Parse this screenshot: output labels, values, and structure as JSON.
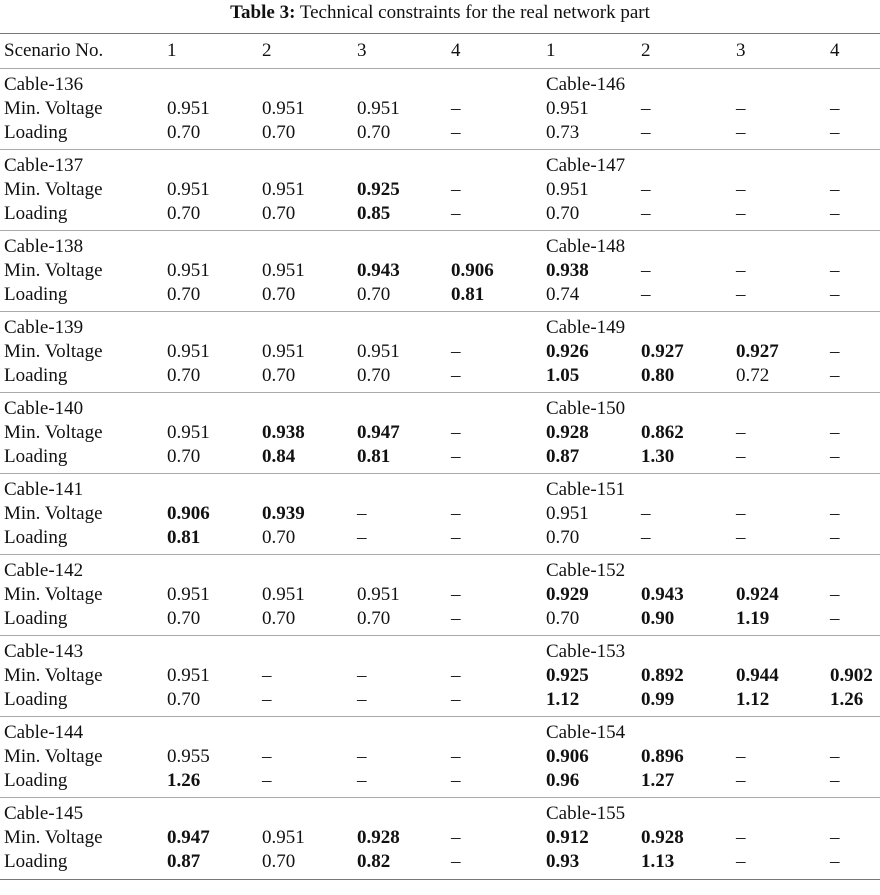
{
  "caption": {
    "label": "Table 3:",
    "text": "Technical constraints for the real network part"
  },
  "header": [
    "Scenario No.",
    "1",
    "2",
    "3",
    "4",
    "1",
    "2",
    "3",
    "4"
  ],
  "row_labels": {
    "voltage": "Min. Voltage",
    "loading": "Loading"
  },
  "groups": [
    {
      "left": "Cable-136",
      "right": "Cable-146",
      "voltage": [
        {
          "v": "0.951",
          "b": false
        },
        {
          "v": "0.951",
          "b": false
        },
        {
          "v": "0.951",
          "b": false
        },
        {
          "v": "–",
          "b": false
        },
        {
          "v": "0.951",
          "b": false
        },
        {
          "v": "–",
          "b": false
        },
        {
          "v": "–",
          "b": false
        },
        {
          "v": "–",
          "b": false
        }
      ],
      "loading": [
        {
          "v": "0.70",
          "b": false
        },
        {
          "v": "0.70",
          "b": false
        },
        {
          "v": "0.70",
          "b": false
        },
        {
          "v": "–",
          "b": false
        },
        {
          "v": "0.73",
          "b": false
        },
        {
          "v": "–",
          "b": false
        },
        {
          "v": "–",
          "b": false
        },
        {
          "v": "–",
          "b": false
        }
      ]
    },
    {
      "left": "Cable-137",
      "right": "Cable-147",
      "voltage": [
        {
          "v": "0.951",
          "b": false
        },
        {
          "v": "0.951",
          "b": false
        },
        {
          "v": "0.925",
          "b": true
        },
        {
          "v": "–",
          "b": false
        },
        {
          "v": "0.951",
          "b": false
        },
        {
          "v": "–",
          "b": false
        },
        {
          "v": "–",
          "b": false
        },
        {
          "v": "–",
          "b": false
        }
      ],
      "loading": [
        {
          "v": "0.70",
          "b": false
        },
        {
          "v": "0.70",
          "b": false
        },
        {
          "v": "0.85",
          "b": true
        },
        {
          "v": "–",
          "b": false
        },
        {
          "v": "0.70",
          "b": false
        },
        {
          "v": "–",
          "b": false
        },
        {
          "v": "–",
          "b": false
        },
        {
          "v": "–",
          "b": false
        }
      ]
    },
    {
      "left": "Cable-138",
      "right": "Cable-148",
      "voltage": [
        {
          "v": "0.951",
          "b": false
        },
        {
          "v": "0.951",
          "b": false
        },
        {
          "v": "0.943",
          "b": true
        },
        {
          "v": "0.906",
          "b": true
        },
        {
          "v": "0.938",
          "b": true
        },
        {
          "v": "–",
          "b": false
        },
        {
          "v": "–",
          "b": false
        },
        {
          "v": "–",
          "b": false
        }
      ],
      "loading": [
        {
          "v": "0.70",
          "b": false
        },
        {
          "v": "0.70",
          "b": false
        },
        {
          "v": "0.70",
          "b": false
        },
        {
          "v": "0.81",
          "b": true
        },
        {
          "v": "0.74",
          "b": false
        },
        {
          "v": "–",
          "b": false
        },
        {
          "v": "–",
          "b": false
        },
        {
          "v": "–",
          "b": false
        }
      ]
    },
    {
      "left": "Cable-139",
      "right": "Cable-149",
      "voltage": [
        {
          "v": "0.951",
          "b": false
        },
        {
          "v": "0.951",
          "b": false
        },
        {
          "v": "0.951",
          "b": false
        },
        {
          "v": "–",
          "b": false
        },
        {
          "v": "0.926",
          "b": true
        },
        {
          "v": "0.927",
          "b": true
        },
        {
          "v": "0.927",
          "b": true
        },
        {
          "v": "–",
          "b": false
        }
      ],
      "loading": [
        {
          "v": "0.70",
          "b": false
        },
        {
          "v": "0.70",
          "b": false
        },
        {
          "v": "0.70",
          "b": false
        },
        {
          "v": "–",
          "b": false
        },
        {
          "v": "1.05",
          "b": true
        },
        {
          "v": "0.80",
          "b": true
        },
        {
          "v": "0.72",
          "b": false
        },
        {
          "v": "–",
          "b": false
        }
      ]
    },
    {
      "left": "Cable-140",
      "right": "Cable-150",
      "voltage": [
        {
          "v": "0.951",
          "b": false
        },
        {
          "v": "0.938",
          "b": true
        },
        {
          "v": "0.947",
          "b": true
        },
        {
          "v": "–",
          "b": false
        },
        {
          "v": "0.928",
          "b": true
        },
        {
          "v": "0.862",
          "b": true
        },
        {
          "v": "–",
          "b": false
        },
        {
          "v": "–",
          "b": false
        }
      ],
      "loading": [
        {
          "v": "0.70",
          "b": false
        },
        {
          "v": "0.84",
          "b": true
        },
        {
          "v": "0.81",
          "b": true
        },
        {
          "v": "–",
          "b": false
        },
        {
          "v": "0.87",
          "b": true
        },
        {
          "v": "1.30",
          "b": true
        },
        {
          "v": "–",
          "b": false
        },
        {
          "v": "–",
          "b": false
        }
      ]
    },
    {
      "left": "Cable-141",
      "right": "Cable-151",
      "voltage": [
        {
          "v": "0.906",
          "b": true
        },
        {
          "v": "0.939",
          "b": true
        },
        {
          "v": "–",
          "b": false
        },
        {
          "v": "–",
          "b": false
        },
        {
          "v": "0.951",
          "b": false
        },
        {
          "v": "–",
          "b": false
        },
        {
          "v": "–",
          "b": false
        },
        {
          "v": "–",
          "b": false
        }
      ],
      "loading": [
        {
          "v": "0.81",
          "b": true
        },
        {
          "v": "0.70",
          "b": false
        },
        {
          "v": "–",
          "b": false
        },
        {
          "v": "–",
          "b": false
        },
        {
          "v": "0.70",
          "b": false
        },
        {
          "v": "–",
          "b": false
        },
        {
          "v": "–",
          "b": false
        },
        {
          "v": "–",
          "b": false
        }
      ]
    },
    {
      "left": "Cable-142",
      "right": "Cable-152",
      "voltage": [
        {
          "v": "0.951",
          "b": false
        },
        {
          "v": "0.951",
          "b": false
        },
        {
          "v": "0.951",
          "b": false
        },
        {
          "v": "–",
          "b": false
        },
        {
          "v": "0.929",
          "b": true
        },
        {
          "v": "0.943",
          "b": true
        },
        {
          "v": "0.924",
          "b": true
        },
        {
          "v": "–",
          "b": false
        }
      ],
      "loading": [
        {
          "v": "0.70",
          "b": false
        },
        {
          "v": "0.70",
          "b": false
        },
        {
          "v": "0.70",
          "b": false
        },
        {
          "v": "–",
          "b": false
        },
        {
          "v": "0.70",
          "b": false
        },
        {
          "v": "0.90",
          "b": true
        },
        {
          "v": "1.19",
          "b": true
        },
        {
          "v": "–",
          "b": false
        }
      ]
    },
    {
      "left": "Cable-143",
      "right": "Cable-153",
      "voltage": [
        {
          "v": "0.951",
          "b": false
        },
        {
          "v": "–",
          "b": false
        },
        {
          "v": "–",
          "b": false
        },
        {
          "v": "–",
          "b": false
        },
        {
          "v": "0.925",
          "b": true
        },
        {
          "v": "0.892",
          "b": true
        },
        {
          "v": "0.944",
          "b": true
        },
        {
          "v": "0.902",
          "b": true
        }
      ],
      "loading": [
        {
          "v": "0.70",
          "b": false
        },
        {
          "v": "–",
          "b": false
        },
        {
          "v": "–",
          "b": false
        },
        {
          "v": "–",
          "b": false
        },
        {
          "v": "1.12",
          "b": true
        },
        {
          "v": "0.99",
          "b": true
        },
        {
          "v": "1.12",
          "b": true
        },
        {
          "v": "1.26",
          "b": true
        }
      ]
    },
    {
      "left": "Cable-144",
      "right": "Cable-154",
      "voltage": [
        {
          "v": "0.955",
          "b": false
        },
        {
          "v": "–",
          "b": false
        },
        {
          "v": "–",
          "b": false
        },
        {
          "v": "–",
          "b": false
        },
        {
          "v": "0.906",
          "b": true
        },
        {
          "v": "0.896",
          "b": true
        },
        {
          "v": "–",
          "b": false
        },
        {
          "v": "–",
          "b": false
        }
      ],
      "loading": [
        {
          "v": "1.26",
          "b": true
        },
        {
          "v": "–",
          "b": false
        },
        {
          "v": "–",
          "b": false
        },
        {
          "v": "–",
          "b": false
        },
        {
          "v": "0.96",
          "b": true
        },
        {
          "v": "1.27",
          "b": true
        },
        {
          "v": "–",
          "b": false
        },
        {
          "v": "–",
          "b": false
        }
      ]
    },
    {
      "left": "Cable-145",
      "right": "Cable-155",
      "voltage": [
        {
          "v": "0.947",
          "b": true
        },
        {
          "v": "0.951",
          "b": false
        },
        {
          "v": "0.928",
          "b": true
        },
        {
          "v": "–",
          "b": false
        },
        {
          "v": "0.912",
          "b": true
        },
        {
          "v": "0.928",
          "b": true
        },
        {
          "v": "–",
          "b": false
        },
        {
          "v": "–",
          "b": false
        }
      ],
      "loading": [
        {
          "v": "0.87",
          "b": true
        },
        {
          "v": "0.70",
          "b": false
        },
        {
          "v": "0.82",
          "b": true
        },
        {
          "v": "–",
          "b": false
        },
        {
          "v": "0.93",
          "b": true
        },
        {
          "v": "1.13",
          "b": true
        },
        {
          "v": "–",
          "b": false
        },
        {
          "v": "–",
          "b": false
        }
      ]
    }
  ]
}
